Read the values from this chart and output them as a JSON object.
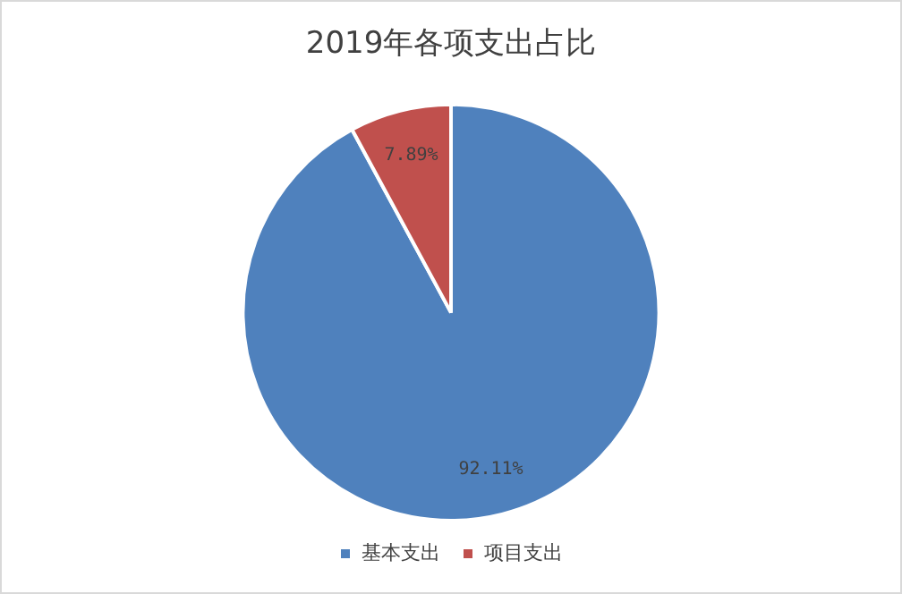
{
  "chart_data": {
    "type": "pie",
    "title": "2019年各项支出占比",
    "categories": [
      "基本支出",
      "项目支出"
    ],
    "values": [
      92.11,
      7.89
    ],
    "value_labels": [
      "92.11%",
      "7.89%"
    ],
    "colors": [
      "#4f81bd",
      "#c0504d"
    ],
    "legend": "bottom"
  }
}
